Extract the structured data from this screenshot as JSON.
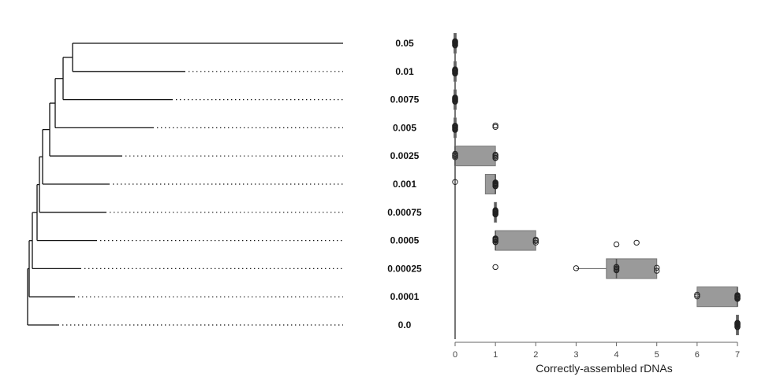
{
  "chart_data": {
    "type": "box",
    "xlabel": "Correctly-assembled rDNAs",
    "xlim": [
      0,
      7
    ],
    "x_ticks": [
      "0",
      "1",
      "2",
      "3",
      "4",
      "5",
      "6",
      "7"
    ],
    "grid": false,
    "legend": "none",
    "colors": {
      "box_fill": "#9a9a9a",
      "box_stroke": "#777777",
      "tree": "#111111"
    },
    "categories": [
      "0.05",
      "0.01",
      "0.0075",
      "0.005",
      "0.0025",
      "0.001",
      "0.00075",
      "0.0005",
      "0.00025",
      "0.0001",
      "0.0"
    ],
    "boxes": [
      {
        "q1": 0,
        "median": 0,
        "q3": 0,
        "whisker_low": 0,
        "whisker_high": 0
      },
      {
        "q1": 0,
        "median": 0,
        "q3": 0,
        "whisker_low": 0,
        "whisker_high": 0
      },
      {
        "q1": 0,
        "median": 0,
        "q3": 0,
        "whisker_low": 0,
        "whisker_high": 0
      },
      {
        "q1": 0,
        "median": 0,
        "q3": 0,
        "whisker_low": 0,
        "whisker_high": 0
      },
      {
        "q1": 0,
        "median": 0,
        "q3": 1,
        "whisker_low": 0,
        "whisker_high": 1
      },
      {
        "q1": 0.75,
        "median": 1,
        "q3": 1,
        "whisker_low": 0.75,
        "whisker_high": 1
      },
      {
        "q1": 1,
        "median": 1,
        "q3": 1,
        "whisker_low": 1,
        "whisker_high": 1
      },
      {
        "q1": 1,
        "median": 1,
        "q3": 2,
        "whisker_low": 1,
        "whisker_high": 2
      },
      {
        "q1": 3.75,
        "median": 4,
        "q3": 5,
        "whisker_low": 3,
        "whisker_high": 5
      },
      {
        "q1": 6,
        "median": 7,
        "q3": 7,
        "whisker_low": 6,
        "whisker_high": 7
      },
      {
        "q1": 7,
        "median": 7,
        "q3": 7,
        "whisker_low": 7,
        "whisker_high": 7
      }
    ],
    "points": [
      [
        0,
        0,
        0,
        0,
        0,
        0,
        0,
        0,
        0,
        0
      ],
      [
        0,
        0,
        0,
        0,
        0,
        0,
        0,
        0,
        0,
        0
      ],
      [
        0,
        0,
        0,
        0,
        0,
        0,
        0,
        0,
        0,
        0
      ],
      [
        0,
        0,
        0,
        0,
        0,
        0,
        0,
        0,
        0,
        1
      ],
      [
        0,
        0,
        0,
        0,
        0,
        1,
        1,
        1,
        1,
        1
      ],
      [
        0,
        1,
        1,
        1,
        1,
        1,
        1,
        1,
        1,
        1
      ],
      [
        1,
        1,
        1,
        1,
        1,
        1,
        1,
        1,
        1,
        1
      ],
      [
        1,
        1,
        1,
        1,
        1,
        1,
        1,
        2,
        2,
        2
      ],
      [
        1,
        3,
        4,
        4,
        4,
        4,
        4,
        4.5,
        5,
        5
      ],
      [
        6,
        6,
        7,
        7,
        7,
        7,
        7,
        7,
        7,
        7
      ],
      [
        7,
        7,
        7,
        7,
        7,
        7,
        7,
        7,
        7,
        7
      ]
    ],
    "tree": {
      "branch_lengths": [
        1.0,
        0.5,
        0.46,
        0.4,
        0.3,
        0.26,
        0.25,
        0.22,
        0.17,
        0.15,
        0.1
      ],
      "root": 0.0
    }
  }
}
